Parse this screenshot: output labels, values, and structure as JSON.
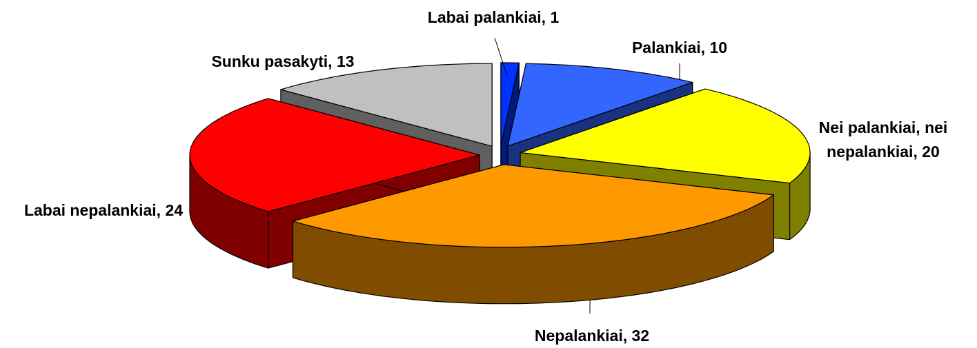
{
  "chart_data": {
    "type": "pie3d",
    "value_labels": [
      "Labai palankiai, 1",
      "Palankiai, 10",
      "Nei palankiai, nei nepalankiai, 20",
      "Nepalankiai, 32",
      "Labai nepalankiai, 24",
      "Sunku pasakyti, 13"
    ],
    "values": [
      1,
      10,
      20,
      32,
      24,
      13
    ],
    "colors": [
      "#0033ff",
      "#3366ff",
      "#ffff00",
      "#ff9900",
      "#ff0000",
      "#c0c0c0"
    ]
  }
}
